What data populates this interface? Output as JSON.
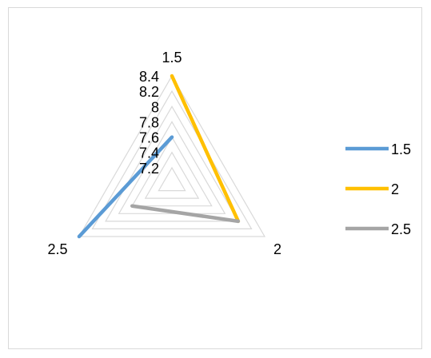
{
  "chart_data": {
    "type": "radar",
    "axes": [
      "1.5",
      "2",
      "2.5"
    ],
    "radial_ticks": [
      "7.2",
      "7.4",
      "7.6",
      "7.8",
      "8",
      "8.2",
      "8.4"
    ],
    "rlim": [
      7.0,
      8.4
    ],
    "grid": true,
    "legend_position": "right",
    "series": [
      {
        "name": "1.5",
        "from_axis": "2.5",
        "to_axis": "1.5",
        "values": [
          8.4,
          7.6
        ],
        "color": "#5b9bd5"
      },
      {
        "name": "2",
        "from_axis": "1.5",
        "to_axis": "2",
        "values": [
          8.4,
          8.0
        ],
        "color": "#ffc000"
      },
      {
        "name": "2.5",
        "from_axis": "2",
        "to_axis": "2.5",
        "values": [
          8.0,
          7.6
        ],
        "color": "#a5a5a5"
      }
    ]
  }
}
